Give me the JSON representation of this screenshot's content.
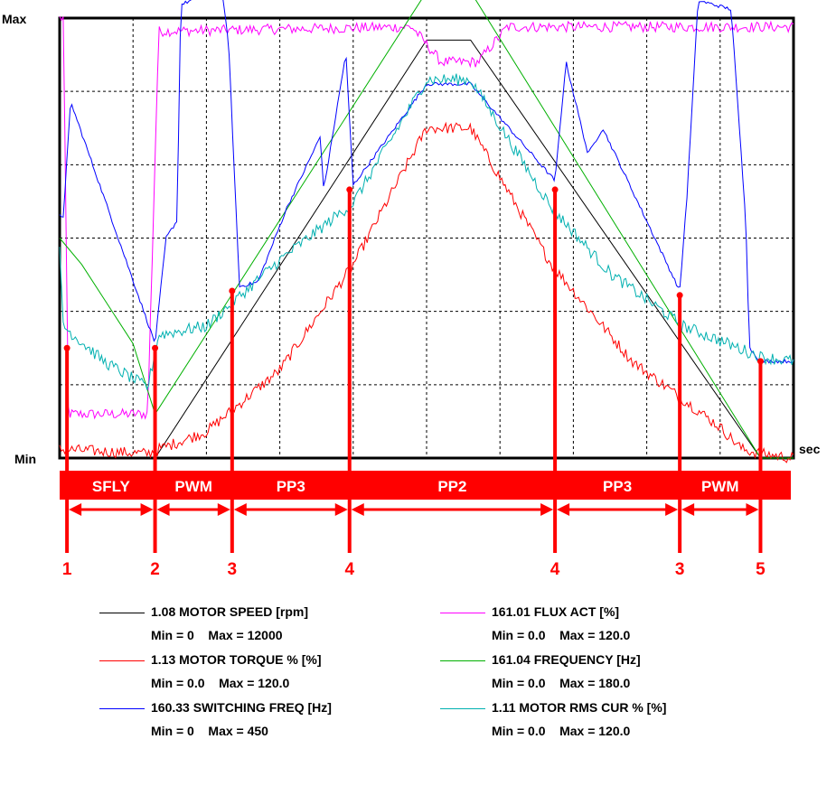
{
  "chart_data": {
    "type": "line",
    "axis": {
      "y_top_label": "Max",
      "y_bottom_label": "Min",
      "x_unit_label": "sec"
    },
    "grid": true,
    "normalized_range": [
      0,
      1
    ],
    "phases": [
      {
        "label": "SFLY",
        "from": 1,
        "to": 2
      },
      {
        "label": "PWM",
        "from": 2,
        "to": 3
      },
      {
        "label": "PP3",
        "from": 3,
        "to": 4
      },
      {
        "label": "PP2",
        "from": 4,
        "to": 5
      },
      {
        "label": "PP3",
        "from": 5,
        "to": 6
      },
      {
        "label": "PWM",
        "from": 6,
        "to": 7
      }
    ],
    "events": [
      {
        "label": "1",
        "t": 0.01,
        "level": 0.25
      },
      {
        "label": "2",
        "t": 0.13,
        "level": 0.25
      },
      {
        "label": "3",
        "t": 0.235,
        "level": 0.38
      },
      {
        "label": "4",
        "t": 0.395,
        "level": 0.61
      },
      {
        "label": "4",
        "t": 0.675,
        "level": 0.61
      },
      {
        "label": "3",
        "t": 0.845,
        "level": 0.37
      },
      {
        "label": "5",
        "t": 0.955,
        "level": 0.22
      }
    ],
    "series": [
      {
        "name": "1.08 MOTOR SPEED [rpm]",
        "range": "Min = 0    Max = 12000",
        "color": "#000000",
        "noise": 0,
        "points": [
          [
            0.0,
            0.0
          ],
          [
            0.13,
            0.0
          ],
          [
            0.5,
            0.95
          ],
          [
            0.56,
            0.95
          ],
          [
            0.955,
            0.0
          ],
          [
            1.0,
            0.0
          ]
        ]
      },
      {
        "name": "161.01 FLUX ACT [%]",
        "range": "Min = 0.0    Max = 120.0",
        "color": "#ff00ff",
        "noise": 0.012,
        "points": [
          [
            0.0,
            1.0
          ],
          [
            0.005,
            1.0
          ],
          [
            0.012,
            0.1
          ],
          [
            0.12,
            0.1
          ],
          [
            0.135,
            0.97
          ],
          [
            0.48,
            0.98
          ],
          [
            0.52,
            0.9
          ],
          [
            0.57,
            0.9
          ],
          [
            0.61,
            0.98
          ],
          [
            1.0,
            0.98
          ]
        ]
      },
      {
        "name": "1.13 MOTOR TORQUE % [%]",
        "range": "Min = 0.0    Max = 120.0",
        "color": "#ff0000",
        "noise": 0.013,
        "points": [
          [
            0.0,
            0.02
          ],
          [
            0.12,
            0.01
          ],
          [
            0.135,
            0.02
          ],
          [
            0.2,
            0.06
          ],
          [
            0.3,
            0.2
          ],
          [
            0.4,
            0.44
          ],
          [
            0.5,
            0.75
          ],
          [
            0.56,
            0.75
          ],
          [
            0.67,
            0.44
          ],
          [
            0.78,
            0.22
          ],
          [
            0.9,
            0.07
          ],
          [
            0.93,
            0.02
          ],
          [
            0.955,
            0.01
          ],
          [
            1.0,
            0.0
          ]
        ]
      },
      {
        "name": "161.04 FREQUENCY [Hz]",
        "range": "Min = 0.0    Max = 180.0",
        "color": "#00b000",
        "noise": 0,
        "points": [
          [
            0.0,
            0.5
          ],
          [
            0.03,
            0.44
          ],
          [
            0.1,
            0.26
          ],
          [
            0.13,
            0.1
          ],
          [
            0.5,
            1.06
          ],
          [
            0.56,
            1.06
          ],
          [
            0.955,
            0.0
          ],
          [
            1.0,
            0.0
          ]
        ]
      },
      {
        "name": "160.33 SWITCHING FREQ [Hz]",
        "range": "Min = 0    Max = 450",
        "color": "#0000ff",
        "noise": 0.004,
        "points": [
          [
            0.0,
            0.55
          ],
          [
            0.005,
            0.55
          ],
          [
            0.015,
            0.81
          ],
          [
            0.13,
            0.26
          ],
          [
            0.145,
            0.5
          ],
          [
            0.16,
            0.54
          ],
          [
            0.165,
            1.03
          ],
          [
            0.22,
            1.07
          ],
          [
            0.23,
            0.95
          ],
          [
            0.245,
            0.39
          ],
          [
            0.27,
            0.4
          ],
          [
            0.31,
            0.57
          ],
          [
            0.355,
            0.73
          ],
          [
            0.36,
            0.61
          ],
          [
            0.39,
            0.92
          ],
          [
            0.4,
            0.62
          ],
          [
            0.5,
            0.85
          ],
          [
            0.56,
            0.85
          ],
          [
            0.675,
            0.63
          ],
          [
            0.69,
            0.9
          ],
          [
            0.72,
            0.69
          ],
          [
            0.74,
            0.75
          ],
          [
            0.845,
            0.38
          ],
          [
            0.855,
            0.6
          ],
          [
            0.87,
            1.04
          ],
          [
            0.915,
            1.02
          ],
          [
            0.935,
            0.54
          ],
          [
            0.94,
            0.25
          ],
          [
            0.955,
            0.22
          ],
          [
            1.0,
            0.22
          ]
        ]
      },
      {
        "name": "1.11 MOTOR RMS CUR % [%]",
        "range": "Min = 0.0    Max = 120.0",
        "color": "#00b0b0",
        "noise": 0.014,
        "points": [
          [
            0.0,
            0.47
          ],
          [
            0.005,
            0.3
          ],
          [
            0.06,
            0.22
          ],
          [
            0.12,
            0.16
          ],
          [
            0.135,
            0.28
          ],
          [
            0.2,
            0.3
          ],
          [
            0.3,
            0.45
          ],
          [
            0.4,
            0.58
          ],
          [
            0.5,
            0.86
          ],
          [
            0.56,
            0.86
          ],
          [
            0.67,
            0.57
          ],
          [
            0.75,
            0.42
          ],
          [
            0.85,
            0.3
          ],
          [
            0.955,
            0.23
          ],
          [
            1.0,
            0.22
          ]
        ]
      }
    ]
  }
}
